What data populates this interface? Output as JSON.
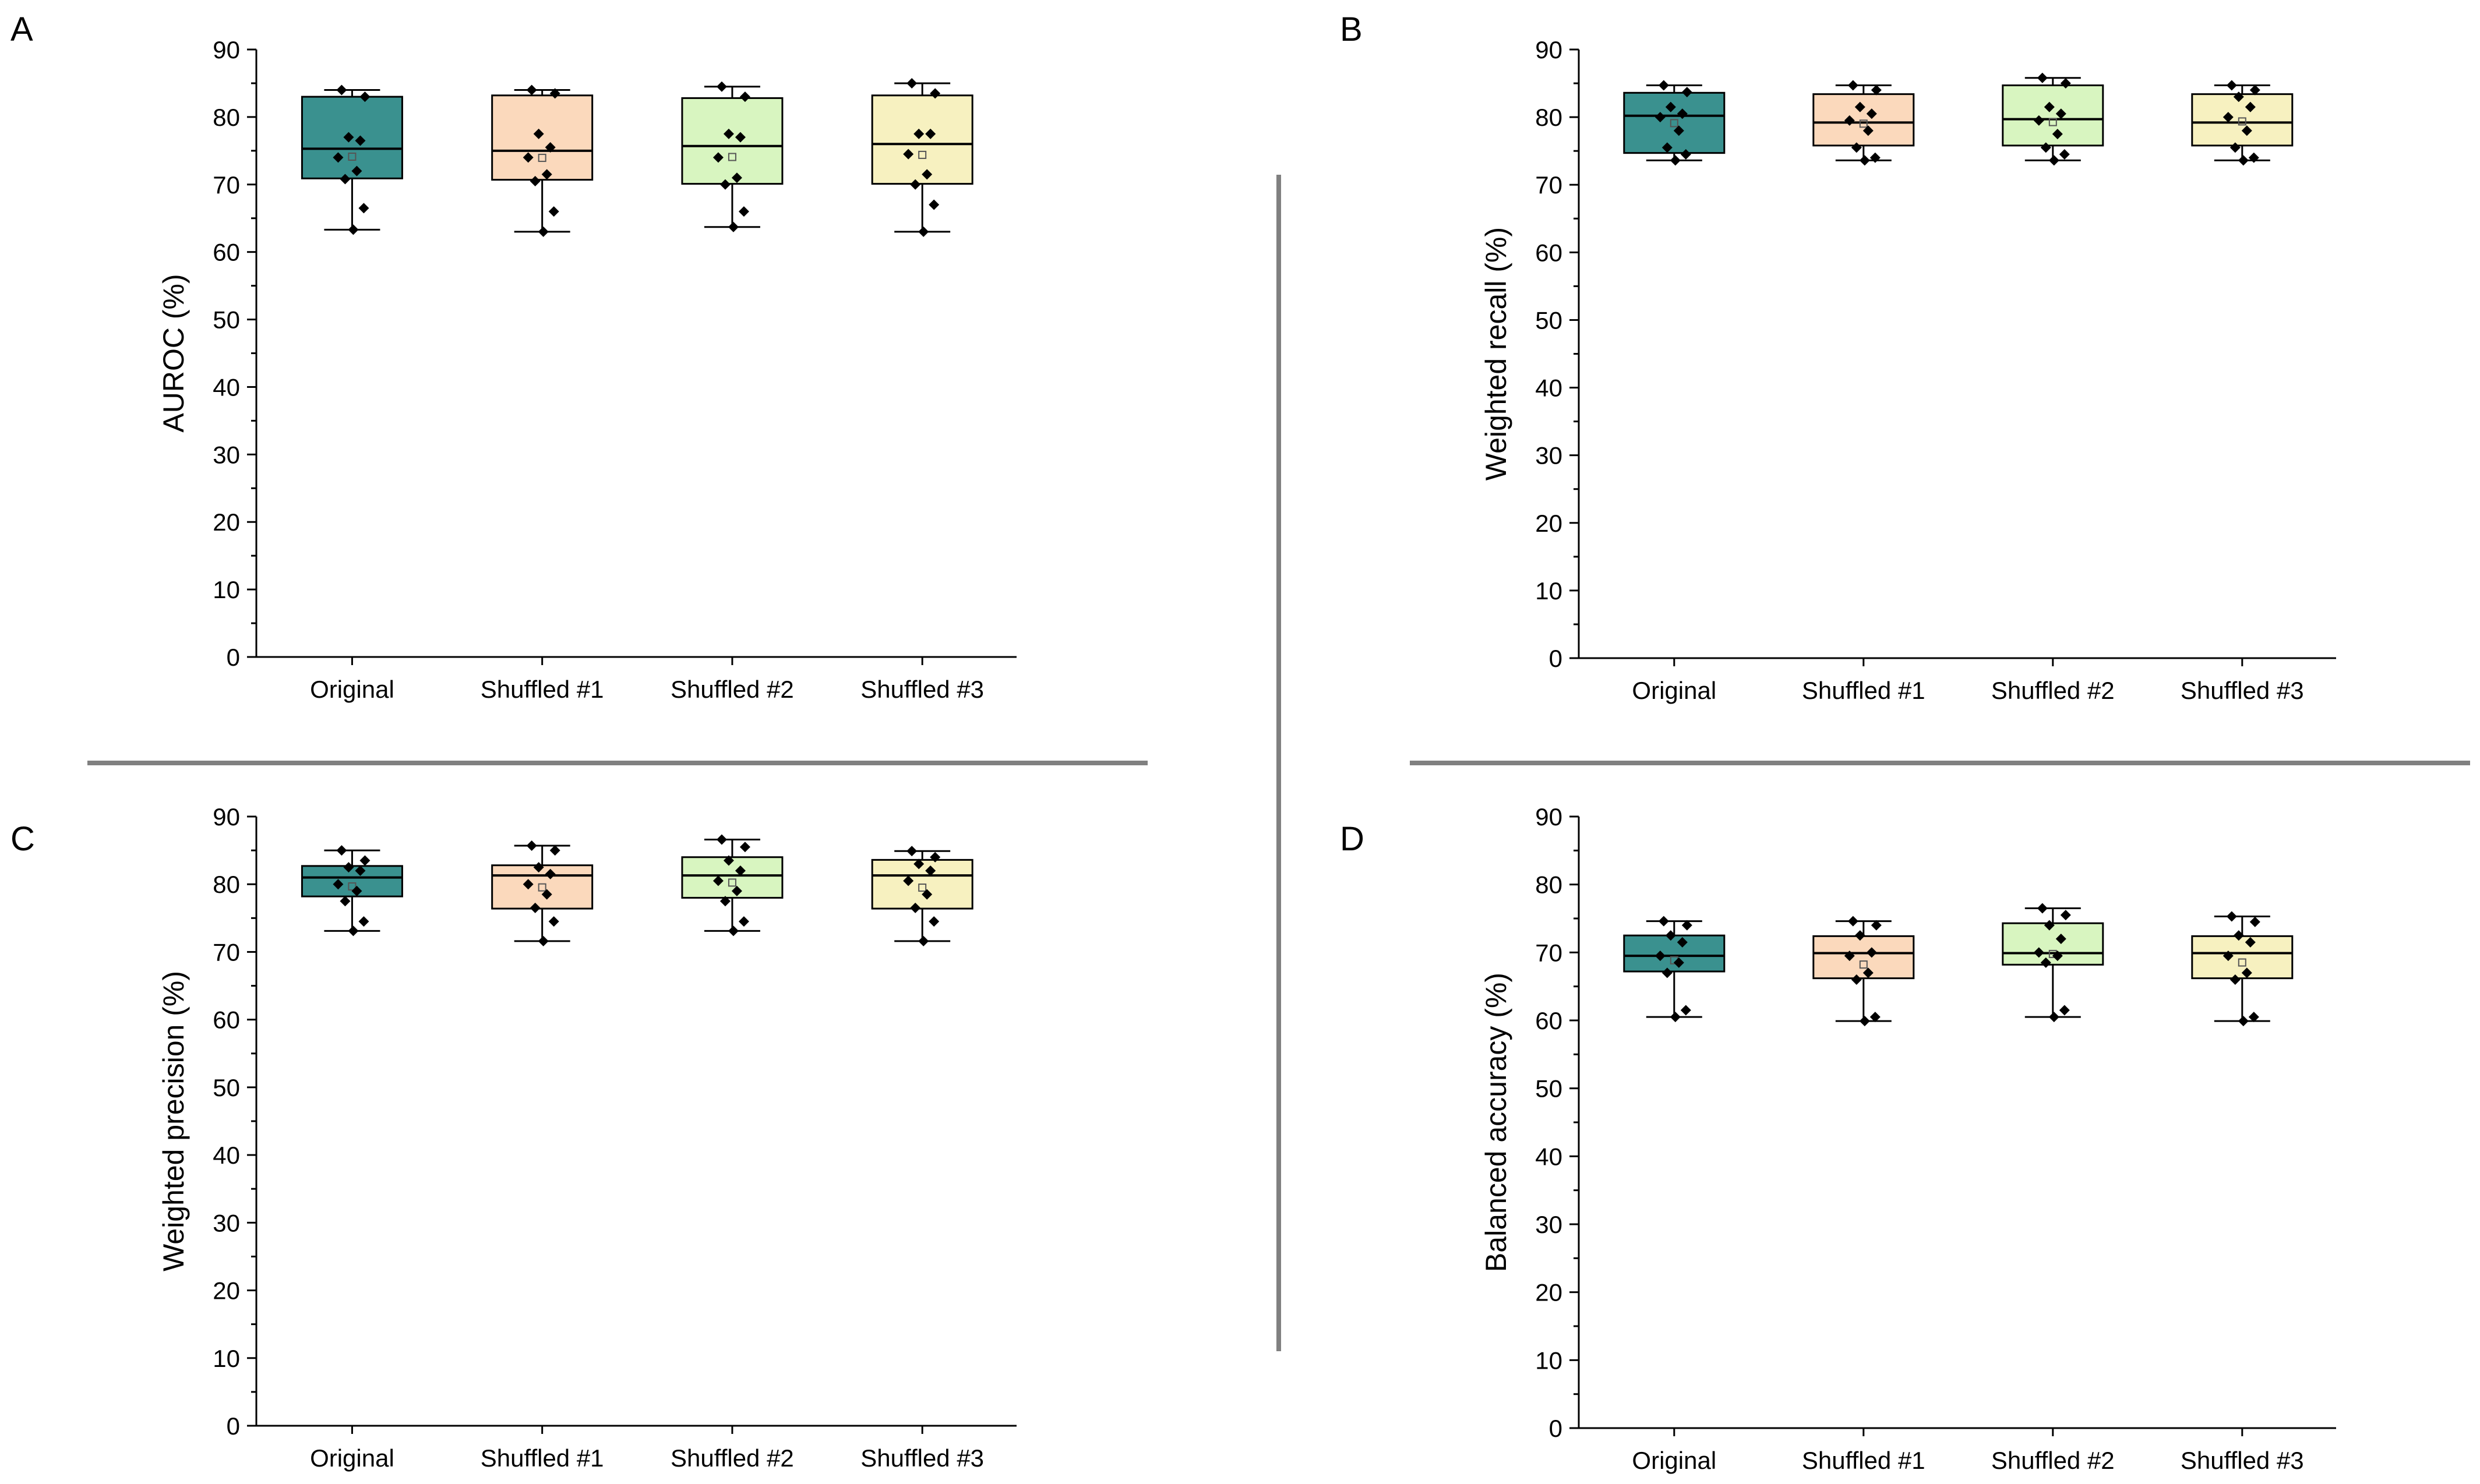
{
  "chart_data": [
    {
      "type": "box",
      "panel": "A",
      "ylabel": "AUROC (%)",
      "ylim": [
        0,
        90
      ],
      "yticks": [
        0,
        10,
        20,
        30,
        40,
        50,
        60,
        70,
        80,
        90
      ],
      "categories": [
        "Original",
        "Shuffled #1",
        "Shuffled #2",
        "Shuffled #3"
      ],
      "boxes": [
        {
          "min": 63.3,
          "q1": 70.9,
          "median": 75.3,
          "q3": 83.0,
          "max": 84.0,
          "points": [
            84.0,
            83.0,
            77.0,
            76.5,
            74.0,
            72.0,
            70.8,
            66.5,
            63.3
          ]
        },
        {
          "min": 63.0,
          "q1": 70.7,
          "median": 75.0,
          "q3": 83.2,
          "max": 84.0,
          "points": [
            84.0,
            83.5,
            77.5,
            75.5,
            74.0,
            71.5,
            70.5,
            66.0,
            63.0
          ]
        },
        {
          "min": 63.7,
          "q1": 70.1,
          "median": 75.7,
          "q3": 82.8,
          "max": 84.5,
          "points": [
            84.5,
            83.0,
            77.5,
            77.0,
            74.0,
            71.0,
            70.0,
            66.0,
            63.7
          ]
        },
        {
          "min": 63.0,
          "q1": 70.1,
          "median": 76.0,
          "q3": 83.2,
          "max": 85.0,
          "points": [
            85.0,
            83.5,
            77.5,
            77.5,
            74.5,
            71.5,
            70.0,
            67.0,
            63.0
          ]
        }
      ]
    },
    {
      "type": "box",
      "panel": "B",
      "ylabel": "Weighted recall (%)",
      "ylim": [
        0,
        90
      ],
      "yticks": [
        0,
        10,
        20,
        30,
        40,
        50,
        60,
        70,
        80,
        90
      ],
      "categories": [
        "Original",
        "Shuffled #1",
        "Shuffled #2",
        "Shuffled #3"
      ],
      "boxes": [
        {
          "min": 73.6,
          "q1": 74.7,
          "median": 80.2,
          "q3": 83.6,
          "max": 84.7,
          "points": [
            84.7,
            83.7,
            81.5,
            80.5,
            80.0,
            78.0,
            75.5,
            74.5,
            73.6
          ]
        },
        {
          "min": 73.6,
          "q1": 75.8,
          "median": 79.2,
          "q3": 83.4,
          "max": 84.7,
          "points": [
            84.7,
            84.0,
            81.5,
            80.5,
            79.5,
            78.0,
            75.5,
            74.0,
            73.6
          ]
        },
        {
          "min": 73.6,
          "q1": 75.8,
          "median": 79.7,
          "q3": 84.7,
          "max": 85.8,
          "points": [
            85.8,
            85.0,
            81.5,
            80.5,
            79.5,
            77.5,
            75.5,
            74.5,
            73.6
          ]
        },
        {
          "min": 73.6,
          "q1": 75.8,
          "median": 79.2,
          "q3": 83.4,
          "max": 84.7,
          "points": [
            84.7,
            84.0,
            83.0,
            81.5,
            80.0,
            78.0,
            75.5,
            74.0,
            73.6
          ]
        }
      ]
    },
    {
      "type": "box",
      "panel": "C",
      "ylabel": "Weighted precision (%)",
      "ylim": [
        0,
        90
      ],
      "yticks": [
        0,
        10,
        20,
        30,
        40,
        50,
        60,
        70,
        80,
        90
      ],
      "categories": [
        "Original",
        "Shuffled #1",
        "Shuffled #2",
        "Shuffled #3"
      ],
      "boxes": [
        {
          "min": 73.1,
          "q1": 78.2,
          "median": 81.0,
          "q3": 82.7,
          "max": 85.0,
          "points": [
            85.0,
            83.5,
            82.5,
            82.0,
            80.0,
            79.0,
            77.5,
            74.5,
            73.1
          ]
        },
        {
          "min": 71.6,
          "q1": 76.4,
          "median": 81.3,
          "q3": 82.8,
          "max": 85.7,
          "points": [
            85.7,
            85.0,
            82.5,
            81.5,
            80.0,
            78.5,
            76.5,
            74.5,
            71.6
          ]
        },
        {
          "min": 73.1,
          "q1": 78.0,
          "median": 81.3,
          "q3": 84.0,
          "max": 86.6,
          "points": [
            86.6,
            85.5,
            83.5,
            82.0,
            80.5,
            79.0,
            77.5,
            74.5,
            73.1
          ]
        },
        {
          "min": 71.6,
          "q1": 76.4,
          "median": 81.3,
          "q3": 83.6,
          "max": 84.9,
          "points": [
            84.9,
            84.0,
            83.0,
            82.0,
            80.5,
            78.5,
            76.5,
            74.5,
            71.6
          ]
        }
      ]
    },
    {
      "type": "box",
      "panel": "D",
      "ylabel": "Balanced accuracy (%)",
      "ylim": [
        0,
        90
      ],
      "yticks": [
        0,
        10,
        20,
        30,
        40,
        50,
        60,
        70,
        80,
        90
      ],
      "categories": [
        "Original",
        "Shuffled #1",
        "Shuffled #2",
        "Shuffled #3"
      ],
      "boxes": [
        {
          "min": 60.5,
          "q1": 67.2,
          "median": 69.5,
          "q3": 72.5,
          "max": 74.6,
          "points": [
            74.6,
            74.0,
            72.5,
            71.5,
            69.5,
            68.5,
            67.0,
            61.5,
            60.5
          ]
        },
        {
          "min": 59.9,
          "q1": 66.2,
          "median": 69.9,
          "q3": 72.4,
          "max": 74.6,
          "points": [
            74.6,
            74.0,
            72.5,
            70.0,
            69.5,
            67.0,
            66.0,
            60.5,
            59.9
          ]
        },
        {
          "min": 60.5,
          "q1": 68.2,
          "median": 69.9,
          "q3": 74.3,
          "max": 76.5,
          "points": [
            76.5,
            75.5,
            74.0,
            72.0,
            70.0,
            69.5,
            68.5,
            61.5,
            60.5
          ]
        },
        {
          "min": 59.9,
          "q1": 66.2,
          "median": 69.9,
          "q3": 72.4,
          "max": 75.3,
          "points": [
            75.3,
            74.5,
            72.5,
            71.5,
            69.5,
            67.0,
            66.0,
            60.5,
            59.9
          ]
        }
      ]
    }
  ],
  "colors": {
    "box_fills": [
      "#3a918f",
      "#fbd9bc",
      "#d8f5c0",
      "#f7f1c0"
    ],
    "divider": "#808080"
  }
}
